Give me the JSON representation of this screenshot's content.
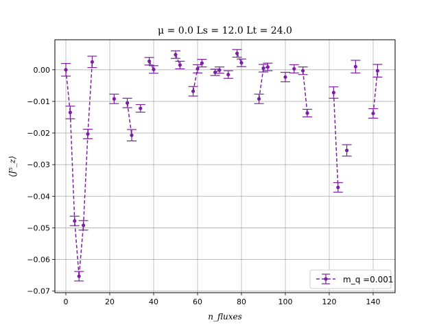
{
  "chart_data": {
    "type": "scatter",
    "title": "μ = 0.0 Ls = 12.0 Lt = 24.0",
    "xlabel": "n_fluxes",
    "ylabel": "⟨J⁵_z⟩",
    "xlim": [
      -5,
      150
    ],
    "ylim": [
      -0.0705,
      0.0095
    ],
    "x_ticks": [
      0,
      20,
      40,
      60,
      80,
      100,
      120,
      140
    ],
    "x_tick_labels": [
      "0",
      "20",
      "40",
      "60",
      "80",
      "100",
      "120",
      "140"
    ],
    "y_ticks": [
      0.0,
      -0.01,
      -0.02,
      -0.03,
      -0.04,
      -0.05,
      -0.06,
      -0.07
    ],
    "y_tick_labels": [
      "0.00",
      "−0.01",
      "−0.02",
      "−0.03",
      "−0.04",
      "−0.05",
      "−0.06",
      "−0.07"
    ],
    "grid": true,
    "legend_position": "lower-right",
    "color": "#7b1fa2",
    "series": [
      {
        "name": "m_q =0.001",
        "style": "dashed-line-with-errorbars",
        "segments": [
          {
            "x": [
              0,
              2,
              4,
              6,
              8,
              10,
              12
            ],
            "y": [
              0.0,
              -0.0135,
              -0.0478,
              -0.0653,
              -0.0492,
              -0.0203,
              0.0025
            ],
            "err": [
              0.002,
              0.002,
              0.0015,
              0.0015,
              0.0015,
              0.0015,
              0.0018
            ]
          },
          {
            "x": [
              22
            ],
            "y": [
              -0.0092
            ],
            "err": [
              0.0015
            ]
          },
          {
            "x": [
              28,
              30
            ],
            "y": [
              -0.0105,
              -0.0207
            ],
            "err": [
              0.0015,
              0.0018
            ]
          },
          {
            "x": [
              34
            ],
            "y": [
              -0.0122
            ],
            "err": [
              0.0012
            ]
          },
          {
            "x": [
              38,
              40
            ],
            "y": [
              0.0027,
              0.0001
            ],
            "err": [
              0.0012,
              0.0012
            ]
          },
          {
            "x": [
              50,
              52
            ],
            "y": [
              0.0048,
              0.0015
            ],
            "err": [
              0.0012,
              0.0012
            ]
          },
          {
            "x": [
              58,
              60,
              62
            ],
            "y": [
              -0.0068,
              0.0003,
              0.0021
            ],
            "err": [
              0.0015,
              0.0013,
              0.0012
            ]
          },
          {
            "x": [
              68,
              70
            ],
            "y": [
              -0.0008,
              -0.0001
            ],
            "err": [
              0.001,
              0.001
            ]
          },
          {
            "x": [
              74
            ],
            "y": [
              -0.0015
            ],
            "err": [
              0.0012
            ]
          },
          {
            "x": [
              78,
              80
            ],
            "y": [
              0.0052,
              0.0022
            ],
            "err": [
              0.0012,
              0.0012
            ]
          },
          {
            "x": [
              88,
              90,
              92
            ],
            "y": [
              -0.0092,
              0.0005,
              0.0009
            ],
            "err": [
              0.0015,
              0.0012,
              0.0012
            ]
          },
          {
            "x": [
              100
            ],
            "y": [
              -0.0023
            ],
            "err": [
              0.0015
            ]
          },
          {
            "x": [
              104
            ],
            "y": [
              0.0003
            ],
            "err": [
              0.0013
            ]
          },
          {
            "x": [
              108,
              110
            ],
            "y": [
              -0.0003,
              -0.0137
            ],
            "err": [
              0.0012,
              0.0012
            ]
          },
          {
            "x": [
              122,
              124
            ],
            "y": [
              -0.0072,
              -0.0372
            ],
            "err": [
              0.0018,
              0.0015
            ]
          },
          {
            "x": [
              128
            ],
            "y": [
              -0.0255
            ],
            "err": [
              0.0018
            ]
          },
          {
            "x": [
              132
            ],
            "y": [
              0.001
            ],
            "err": [
              0.002
            ]
          },
          {
            "x": [
              140,
              142
            ],
            "y": [
              -0.0138,
              -0.0003
            ],
            "err": [
              0.0015,
              0.002
            ]
          }
        ]
      }
    ]
  }
}
